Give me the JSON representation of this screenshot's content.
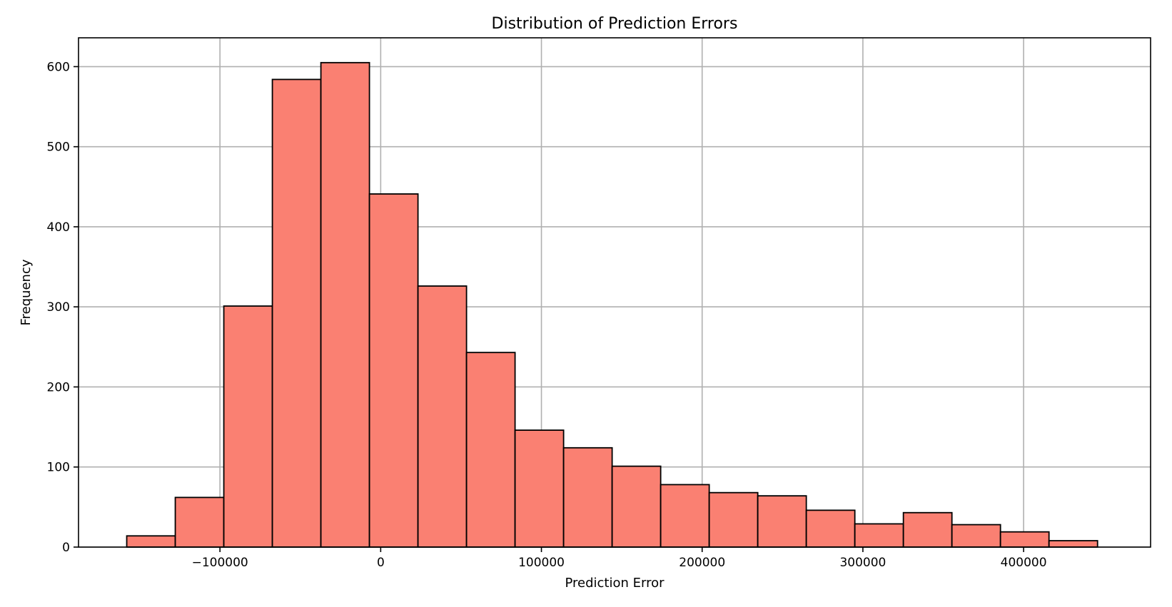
{
  "chart_data": {
    "type": "bar",
    "title": "Distribution of Prediction Errors",
    "xlabel": "Prediction Error",
    "ylabel": "Frequency",
    "xlim": [
      -188000,
      479000
    ],
    "ylim": [
      0,
      636
    ],
    "grid": true,
    "bar_color": "#fa8072",
    "edge_color": "#000000",
    "grid_color": "#b0b0b0",
    "bin_edges": [
      -158000,
      -127800,
      -97600,
      -67400,
      -37200,
      -7000,
      23200,
      53400,
      83600,
      113800,
      144000,
      174200,
      204400,
      234600,
      264800,
      295000,
      325200,
      355400,
      385600,
      415800,
      446000
    ],
    "values": [
      14,
      62,
      301,
      584,
      605,
      441,
      326,
      243,
      146,
      124,
      101,
      78,
      68,
      64,
      46,
      29,
      43,
      28,
      19,
      8
    ],
    "x_ticks": [
      -100000,
      0,
      100000,
      200000,
      300000,
      400000
    ],
    "x_tick_labels": [
      "−100000",
      "0",
      "100000",
      "200000",
      "300000",
      "400000"
    ],
    "y_ticks": [
      0,
      100,
      200,
      300,
      400,
      500,
      600
    ],
    "y_tick_labels": [
      "0",
      "100",
      "200",
      "300",
      "400",
      "500",
      "600"
    ]
  }
}
